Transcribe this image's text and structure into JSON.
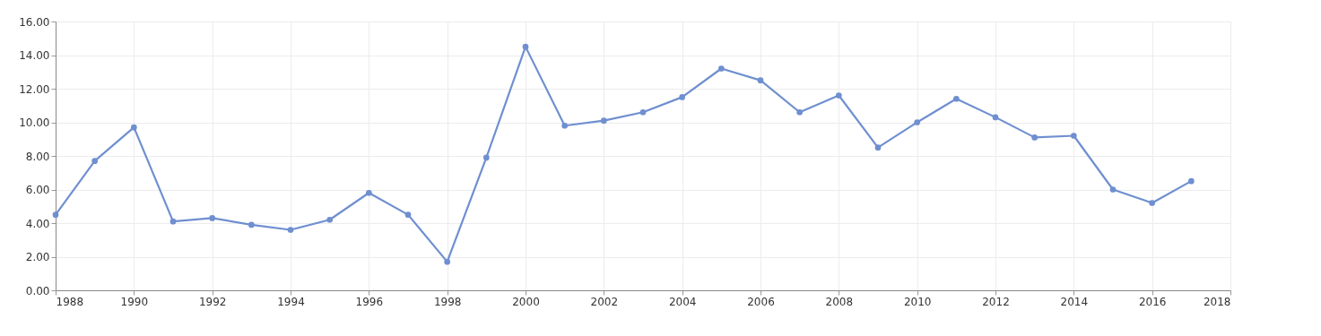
{
  "chart_data": {
    "type": "line",
    "x": [
      1988,
      1989,
      1990,
      1991,
      1992,
      1993,
      1994,
      1995,
      1996,
      1997,
      1998,
      1999,
      2000,
      2001,
      2002,
      2003,
      2004,
      2005,
      2006,
      2007,
      2008,
      2009,
      2010,
      2011,
      2012,
      2013,
      2014,
      2015,
      2016,
      2017
    ],
    "series": [
      {
        "color": "#6f8fd0",
        "values": [
          4.5,
          7.7,
          9.7,
          4.1,
          4.3,
          3.9,
          3.6,
          4.2,
          5.8,
          4.5,
          1.7,
          7.9,
          14.5,
          9.8,
          10.1,
          10.6,
          11.5,
          13.2,
          12.5,
          10.6,
          11.6,
          8.5,
          10.0,
          11.4,
          10.3,
          9.1,
          9.2,
          6.0,
          5.2,
          6.5
        ]
      }
    ],
    "xlim": [
      1988,
      2018
    ],
    "xticks": [
      1988,
      1990,
      1992,
      1994,
      1996,
      1998,
      2000,
      2002,
      2004,
      2006,
      2008,
      2010,
      2012,
      2014,
      2016,
      2018
    ],
    "ylim": [
      0,
      16
    ],
    "yticks": [
      {
        "value": 0,
        "label": "0.00"
      },
      {
        "value": 2,
        "label": "2.00"
      },
      {
        "value": 4,
        "label": "4.00"
      },
      {
        "value": 6,
        "label": "6.00"
      },
      {
        "value": 8,
        "label": "8.00"
      },
      {
        "value": 10,
        "label": "10.00"
      },
      {
        "value": 12,
        "label": "12.00"
      },
      {
        "value": 14,
        "label": "14.00"
      },
      {
        "value": 16,
        "label": "16.00"
      }
    ],
    "grid": true,
    "marker": "circle",
    "line_style": "solid"
  }
}
